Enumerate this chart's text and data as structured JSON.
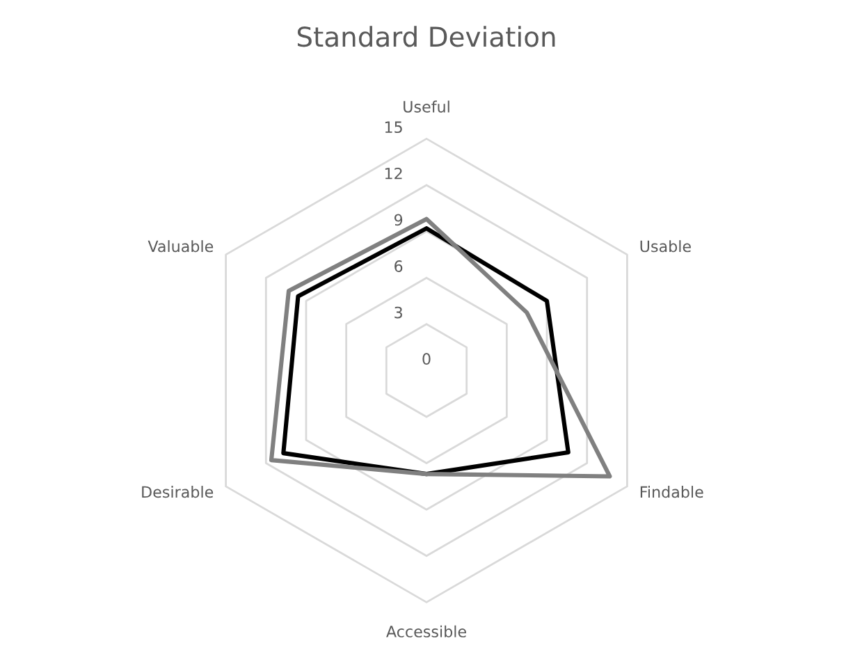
{
  "chart_data": {
    "type": "radar",
    "title": "Standard Deviation",
    "categories": [
      "Useful",
      "Usable",
      "Findable",
      "Accessible",
      "Desirable",
      "Valuable"
    ],
    "series": [
      {
        "color": "#000000",
        "values": [
          9.2,
          9.0,
          10.6,
          6.7,
          10.7,
          9.6
        ]
      },
      {
        "color": "#808080",
        "values": [
          9.8,
          7.5,
          13.7,
          6.7,
          11.6,
          10.3
        ]
      }
    ],
    "ylim": [
      0,
      15
    ],
    "yticks": [
      0,
      3,
      6,
      9,
      12,
      15
    ],
    "grid": true
  }
}
